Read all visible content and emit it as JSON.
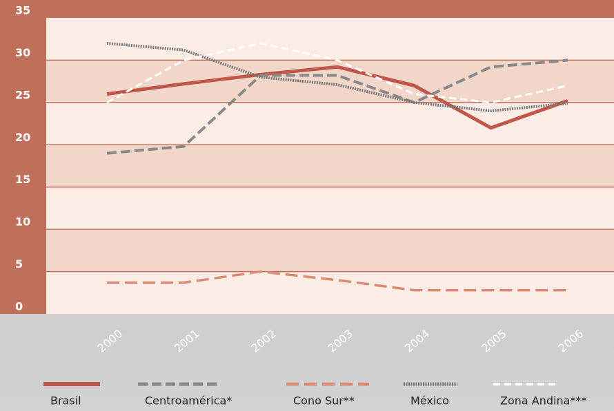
{
  "chart_data": {
    "type": "line",
    "x": [
      "2000",
      "2001",
      "2002",
      "2003",
      "2004",
      "2005",
      "2006"
    ],
    "ylim": [
      0,
      35
    ],
    "yticks": [
      0,
      5,
      10,
      15,
      20,
      25,
      30,
      35
    ],
    "grid": true,
    "series": [
      {
        "name": "Brasil",
        "color": "#c0574a",
        "values": [
          26,
          27.2,
          28.3,
          29.2,
          27,
          22,
          25.2
        ]
      },
      {
        "name": "Centroamérica*",
        "color": "#888888",
        "values": [
          19,
          19.8,
          28.2,
          28.2,
          25,
          29.2,
          30
        ]
      },
      {
        "name": "Cono Sur**",
        "color": "#d98a74",
        "values": [
          3.7,
          3.7,
          5,
          4,
          2.8,
          2.8,
          2.8
        ]
      },
      {
        "name": "México",
        "color": "#777777",
        "values": [
          32,
          31.2,
          28,
          27.1,
          25,
          24,
          24.9
        ]
      },
      {
        "name": "Zona Andina***",
        "color": "#ffffff",
        "values": [
          25,
          30,
          32,
          30,
          26,
          25,
          27
        ]
      }
    ]
  }
}
